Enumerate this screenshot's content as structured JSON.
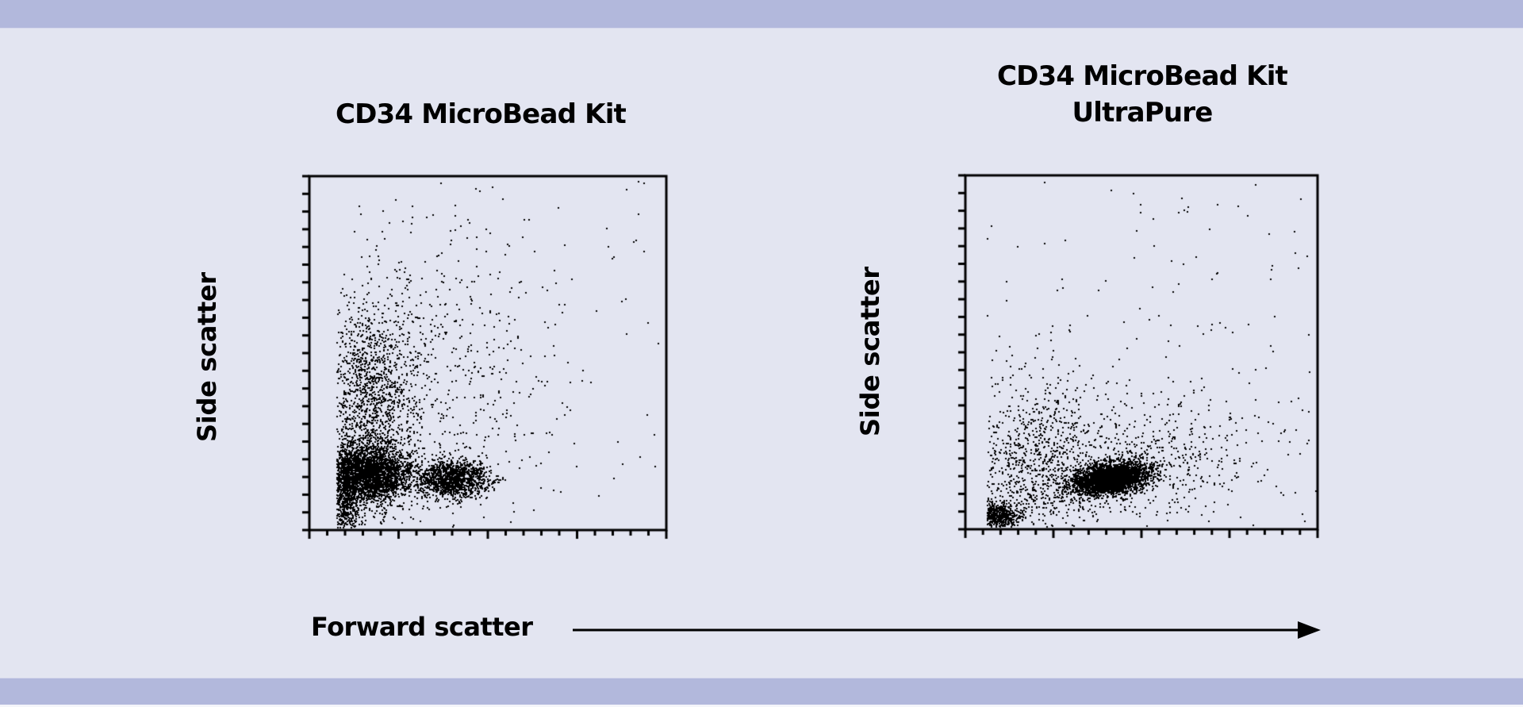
{
  "colors": {
    "background": "#E3E5F1",
    "band": "#B2B8DC",
    "ink": "#000000"
  },
  "figure": {
    "x_axis_label": "Forward scatter",
    "x_axis_arrow": "right-arrow",
    "panels": [
      {
        "id": "left",
        "title": "CD34 MicroBead Kit",
        "y_axis_label": "Side scatter"
      },
      {
        "id": "right",
        "title": "CD34 MicroBead Kit\nUltraPure",
        "title_line1": "CD34 MicroBead Kit",
        "title_line2": "UltraPure",
        "y_axis_label": "Side scatter"
      }
    ]
  },
  "chart_data": [
    {
      "type": "scatter",
      "title": "CD34 MicroBead Kit",
      "xlabel": "Forward scatter",
      "ylabel": "Side scatter",
      "xlim": [
        0,
        1
      ],
      "ylim": [
        0,
        1
      ],
      "grid": false,
      "legend": null,
      "ticks": {
        "x_count": 20,
        "y_count": 20,
        "major_every": 5,
        "tick_labels": []
      },
      "clusters": [
        {
          "name": "dense population 1",
          "cx": 0.17,
          "cy": 0.16,
          "sx": 0.055,
          "sy": 0.04,
          "n": 2600,
          "tilt": 0.0
        },
        {
          "name": "dense population 2",
          "cx": 0.4,
          "cy": 0.145,
          "sx": 0.05,
          "sy": 0.025,
          "n": 1300,
          "tilt": 0.0
        },
        {
          "name": "left edge debris",
          "cx": 0.1,
          "cy": 0.1,
          "sx": 0.02,
          "sy": 0.08,
          "n": 700,
          "tilt": 0.0
        },
        {
          "name": "vertical SSC streak",
          "cx": 0.17,
          "cy": 0.36,
          "sx": 0.065,
          "sy": 0.15,
          "n": 1400,
          "tilt": 0.0
        },
        {
          "name": "diffuse cells",
          "cx": 0.32,
          "cy": 0.42,
          "sx": 0.17,
          "sy": 0.22,
          "n": 650,
          "tilt": 0.0
        },
        {
          "name": "background events",
          "cx": 0.55,
          "cy": 0.55,
          "sx": 0.45,
          "sy": 0.45,
          "n": 150,
          "uniform": true
        }
      ],
      "xmin_cutoff": 0.075
    },
    {
      "type": "scatter",
      "title": "CD34 MicroBead Kit UltraPure",
      "xlabel": "Forward scatter",
      "ylabel": "Side scatter",
      "xlim": [
        0,
        1
      ],
      "ylim": [
        0,
        1
      ],
      "grid": false,
      "legend": null,
      "ticks": {
        "x_count": 20,
        "y_count": 20,
        "major_every": 5,
        "tick_labels": []
      },
      "clusters": [
        {
          "name": "dense target population",
          "cx": 0.41,
          "cy": 0.145,
          "sx": 0.055,
          "sy": 0.022,
          "n": 3200,
          "tilt": 0.12
        },
        {
          "name": "low FSC debris",
          "cx": 0.09,
          "cy": 0.04,
          "sx": 0.03,
          "sy": 0.02,
          "n": 550,
          "tilt": 0.0
        },
        {
          "name": "lower-left cloud",
          "cx": 0.19,
          "cy": 0.19,
          "sx": 0.09,
          "sy": 0.12,
          "n": 900,
          "tilt": 0.0
        },
        {
          "name": "right diffuse tail",
          "cx": 0.52,
          "cy": 0.21,
          "sx": 0.17,
          "sy": 0.09,
          "n": 550,
          "tilt": 0.0
        },
        {
          "name": "background events",
          "cx": 0.55,
          "cy": 0.55,
          "sx": 0.45,
          "sy": 0.45,
          "n": 160,
          "uniform": true
        }
      ],
      "xmin_cutoff": 0.06
    }
  ]
}
